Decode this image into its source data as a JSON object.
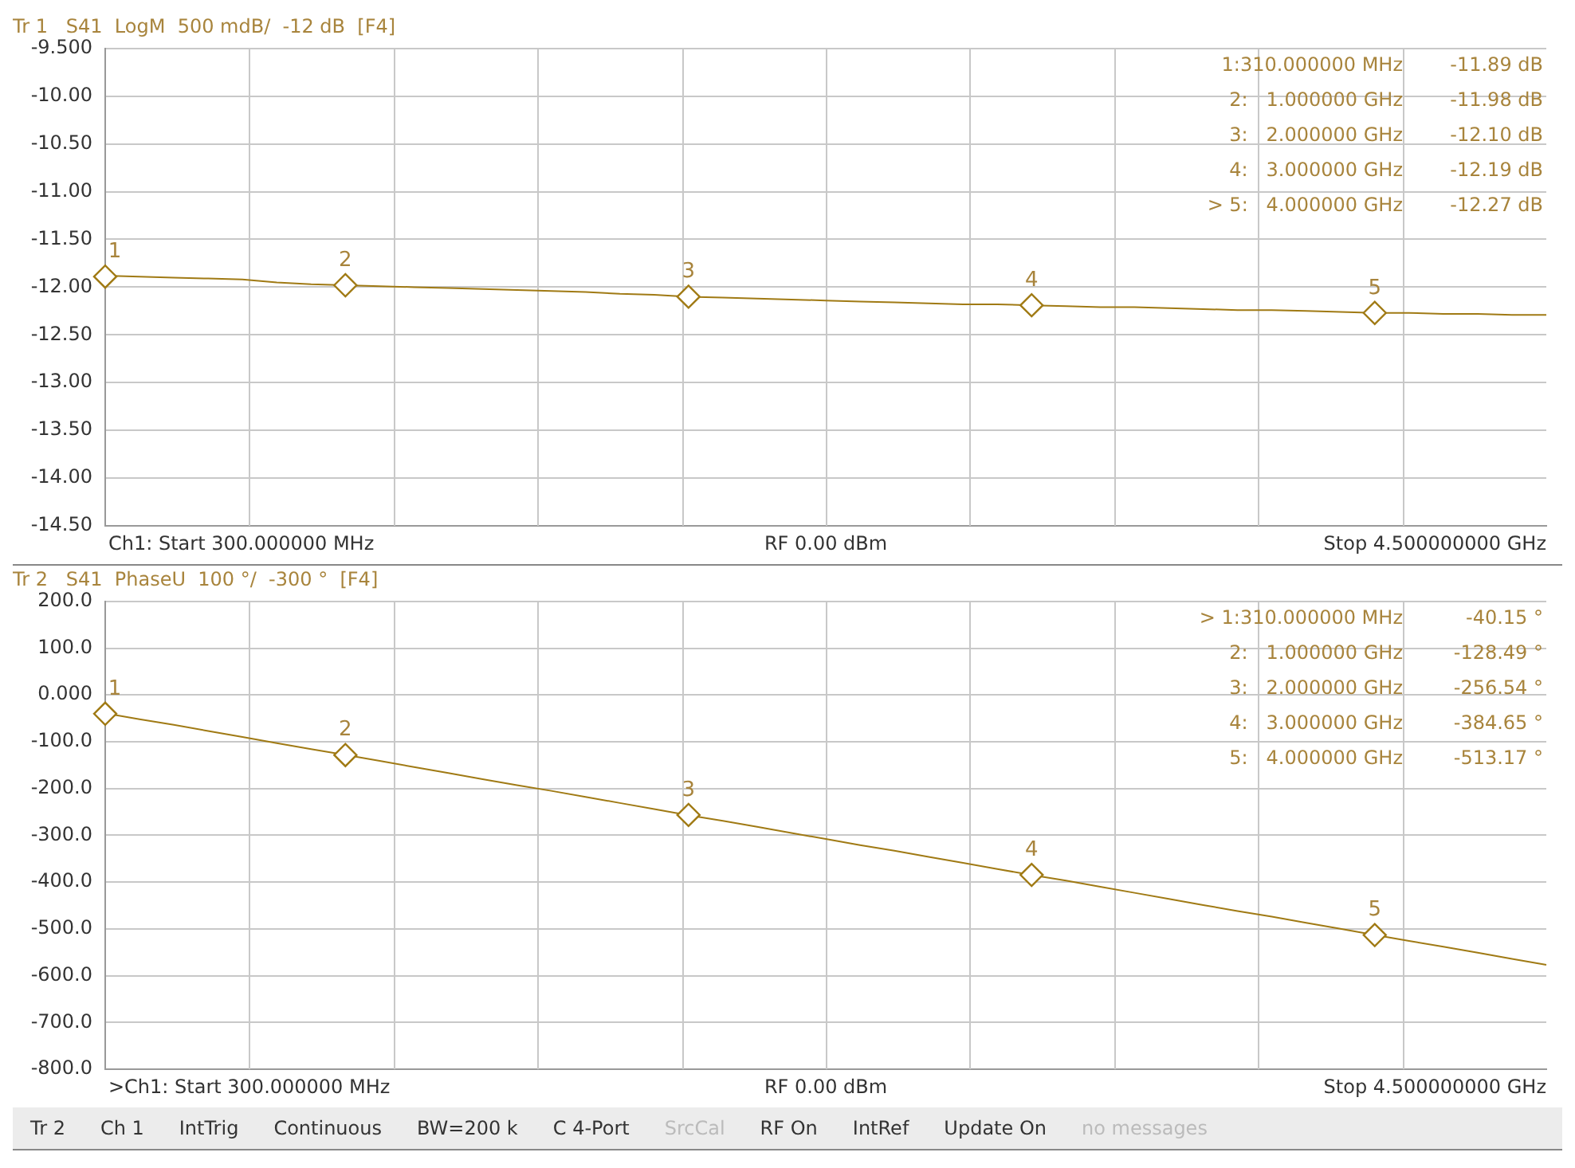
{
  "chart_data": [
    {
      "type": "line",
      "title": "Tr 1   S41  LogM  500 mdB/  -12 dB  [F4]",
      "categories": [
        null,
        null,
        null,
        null,
        null,
        null,
        null,
        null,
        null,
        null,
        null,
        null,
        null,
        null,
        null,
        null,
        null,
        null,
        null,
        null,
        null,
        null,
        null,
        null,
        null,
        null,
        null,
        null,
        null,
        null,
        null,
        null,
        null,
        null,
        null,
        null,
        null,
        null,
        null,
        null,
        null,
        null,
        null
      ],
      "ylim": [
        -14.5,
        -9.5
      ],
      "yticks": [
        {
          "value": -9.5,
          "label": "-9.500"
        },
        {
          "value": -10,
          "label": "-10.00"
        },
        {
          "value": -10.5,
          "label": "-10.50"
        },
        {
          "value": -11,
          "label": "-11.00"
        },
        {
          "value": -11.5,
          "label": "-11.50"
        },
        {
          "value": -12,
          "label": "-12.00"
        },
        {
          "value": -12.5,
          "label": "-12.50"
        },
        {
          "value": -13,
          "label": "-13.00"
        },
        {
          "value": -13.5,
          "label": "-13.50"
        },
        {
          "value": -14,
          "label": "-14.00"
        },
        {
          "value": -14.5,
          "label": "-14.50"
        }
      ],
      "tick_labels": "y",
      "grid": true,
      "legend": false,
      "series": [
        {
          "color": "#a07a14",
          "marker": "none",
          "values": [
            -11.88,
            -11.89,
            -11.9,
            -11.91,
            -11.92,
            -11.95,
            -11.97,
            -11.98,
            -11.99,
            -12,
            -12.01,
            -12.02,
            -12.03,
            -12.04,
            -12.05,
            -12.07,
            -12.08,
            -12.1,
            -12.11,
            -12.12,
            -12.13,
            -12.14,
            -12.15,
            -12.16,
            -12.17,
            -12.18,
            -12.18,
            -12.19,
            -12.2,
            -12.21,
            -12.21,
            -12.22,
            -12.23,
            -12.24,
            -12.24,
            -12.25,
            -12.26,
            -12.27,
            -12.27,
            -12.28,
            -12.28,
            -12.29,
            -12.29
          ]
        },
        {
          "type": "scatter",
          "color": "#a07a14",
          "marker": "diamond",
          "values": [
            -11.89,
            null,
            null,
            null,
            null,
            null,
            null,
            -11.98,
            null,
            null,
            null,
            null,
            null,
            null,
            null,
            null,
            null,
            -12.1,
            null,
            null,
            null,
            null,
            null,
            null,
            null,
            null,
            null,
            -12.19,
            null,
            null,
            null,
            null,
            null,
            null,
            null,
            null,
            null,
            -12.27,
            null,
            null,
            null,
            null,
            null
          ]
        }
      ],
      "annotations": [
        {
          "text": "1",
          "y": -11.89
        },
        {
          "text": "2",
          "y": -11.98
        },
        {
          "text": "3",
          "y": -12.1
        },
        {
          "text": "4",
          "y": -12.19
        },
        {
          "text": "5",
          "y": -12.27
        },
        "1:310.000000 MHz",
        "-11.89 dB",
        "2:   1.000000 GHz",
        "-11.98 dB",
        "3:   2.000000 GHz",
        "-12.10 dB",
        "4:   3.000000 GHz",
        "-12.19 dB",
        "> 5:   4.000000 GHz",
        "-12.27 dB",
        "Ch1: Start 300.000000 MHz",
        "RF 0.00 dBm",
        "Stop 4.500000000 GHz"
      ]
    },
    {
      "type": "line",
      "title": "Tr 2   S41  PhaseU  100 °/  -300 °  [F4]",
      "categories": [
        null,
        null,
        null,
        null,
        null,
        null,
        null,
        null,
        null,
        null,
        null,
        null,
        null,
        null,
        null,
        null,
        null,
        null,
        null,
        null,
        null,
        null,
        null,
        null,
        null,
        null,
        null,
        null,
        null,
        null,
        null,
        null,
        null,
        null,
        null,
        null,
        null,
        null,
        null,
        null,
        null,
        null,
        null
      ],
      "ylim": [
        -800,
        200
      ],
      "yticks": [
        {
          "value": 200,
          "label": "200.0"
        },
        {
          "value": 100,
          "label": "100.0"
        },
        {
          "value": 0,
          "label": "0.000"
        },
        {
          "value": -100,
          "label": "-100.0"
        },
        {
          "value": -200,
          "label": "-200.0"
        },
        {
          "value": -300,
          "label": "-300.0"
        },
        {
          "value": -400,
          "label": "-400.0"
        },
        {
          "value": -500,
          "label": "-500.0"
        },
        {
          "value": -600,
          "label": "-600.0"
        },
        {
          "value": -700,
          "label": "-700.0"
        },
        {
          "value": -800,
          "label": "-800.0"
        }
      ],
      "tick_labels": "y",
      "grid": true,
      "legend": false,
      "series": [
        {
          "color": "#a07a14",
          "marker": "none",
          "values": [
            -39,
            -52,
            -64,
            -77,
            -90,
            -103,
            -116,
            -128,
            -141,
            -154,
            -167,
            -180,
            -193,
            -205,
            -218,
            -231,
            -244,
            -257,
            -269,
            -282,
            -295,
            -308,
            -321,
            -333,
            -346,
            -359,
            -372,
            -385,
            -397,
            -410,
            -423,
            -436,
            -449,
            -462,
            -474,
            -487,
            -500,
            -513,
            -526,
            -538,
            -551,
            -564,
            -577
          ]
        },
        {
          "type": "scatter",
          "color": "#a07a14",
          "marker": "diamond",
          "values": [
            -40.15,
            null,
            null,
            null,
            null,
            null,
            null,
            -128.49,
            null,
            null,
            null,
            null,
            null,
            null,
            null,
            null,
            null,
            -256.54,
            null,
            null,
            null,
            null,
            null,
            null,
            null,
            null,
            null,
            -384.65,
            null,
            null,
            null,
            null,
            null,
            null,
            null,
            null,
            null,
            -513.17,
            null,
            null,
            null,
            null,
            null
          ]
        }
      ],
      "annotations": [
        {
          "text": "1",
          "y": -40.15
        },
        {
          "text": "2",
          "y": -128.49
        },
        {
          "text": "3",
          "y": -256.54
        },
        {
          "text": "4",
          "y": -384.65
        },
        {
          "text": "5",
          "y": -513.17
        },
        "> 1:310.000000 MHz",
        "-40.15 °",
        "2:   1.000000 GHz",
        "-128.49 °",
        "3:   2.000000 GHz",
        "-256.54 °",
        "4:   3.000000 GHz",
        "-384.65 °",
        "5:   4.000000 GHz",
        "-513.17 °",
        ">Ch1: Start 300.000000 MHz",
        "RF 0.00 dBm",
        "Stop 4.500000000 GHz",
        "Tr 2",
        "Ch 1",
        "IntTrig",
        "Continuous",
        "BW=200 k",
        "C 4-Port",
        "SrcCal",
        "RF On",
        "IntRef",
        "Update On",
        "no messages"
      ]
    }
  ]
}
